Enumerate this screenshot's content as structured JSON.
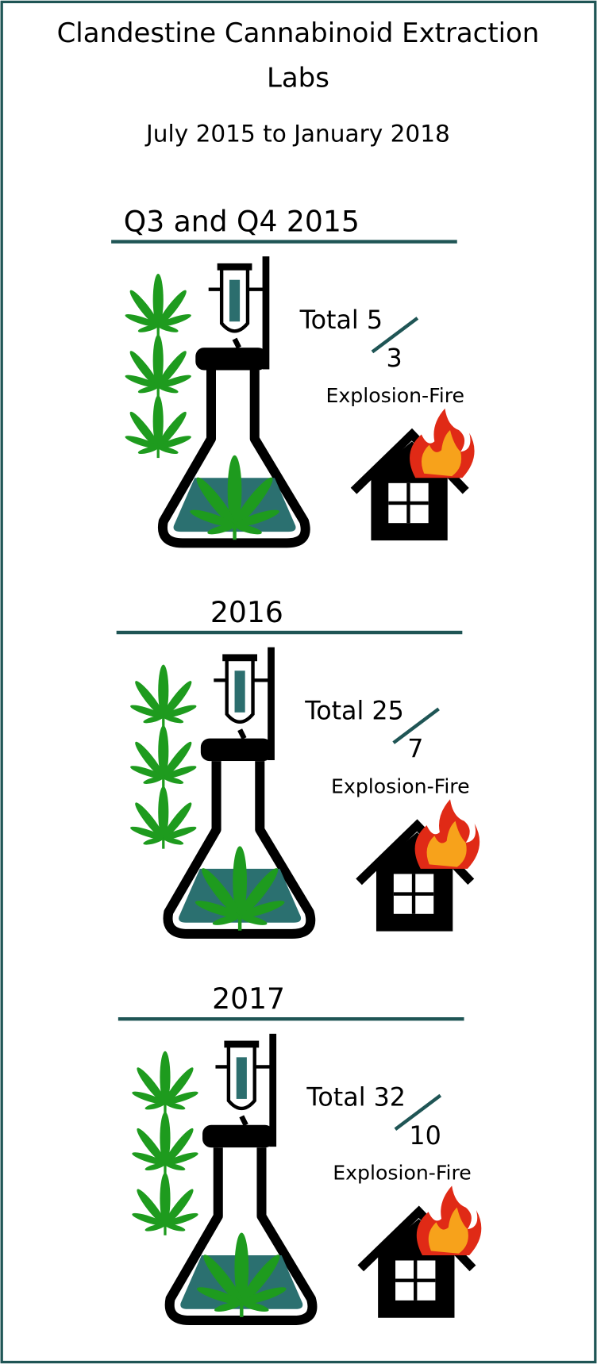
{
  "title": "Clandestine Cannabinoid Extraction Labs",
  "subtitle": "July 2015 to January 2018",
  "sections": [
    {
      "heading": "Q3 and Q4 2015",
      "total_label": "Total",
      "total": 5,
      "explosion_fire": 3,
      "label": "Explosion-Fire"
    },
    {
      "heading": "2016",
      "total_label": "Total",
      "total": 25,
      "explosion_fire": 7,
      "label": "Explosion-Fire"
    },
    {
      "heading": "2017",
      "total_label": "Total",
      "total": 32,
      "explosion_fire": 10,
      "label": "Explosion-Fire"
    }
  ]
}
